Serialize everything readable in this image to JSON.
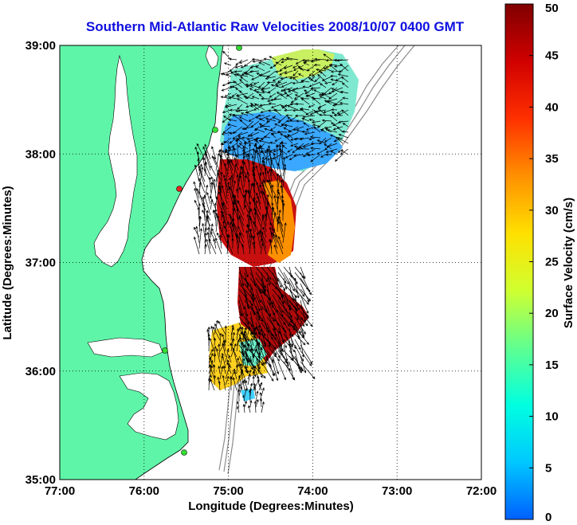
{
  "title": "Southern Mid-Atlantic Raw Velocities 2008/10/07 0400 GMT",
  "x_axis": {
    "label": "Longitude (Degrees:Minutes)",
    "ticks": [
      "77:00",
      "76:00",
      "75:00",
      "74:00",
      "73:00",
      "72:00"
    ],
    "range": [
      -77,
      -72
    ]
  },
  "y_axis": {
    "label": "Latitude (Degrees:Minutes)",
    "ticks": [
      "35:00",
      "36:00",
      "37:00",
      "38:00",
      "39:00"
    ],
    "range": [
      35,
      39
    ]
  },
  "colorbar": {
    "label": "Surface Velocity (cm/s)",
    "ticks": [
      "0",
      "5",
      "10",
      "15",
      "20",
      "25",
      "30",
      "35",
      "40",
      "45",
      "50"
    ],
    "range": [
      0,
      50
    ],
    "colors": [
      "#0060ff",
      "#00c8ff",
      "#00ffe0",
      "#60ff90",
      "#d0ff30",
      "#ffe000",
      "#ff9000",
      "#ff3000",
      "#d00000",
      "#800000"
    ]
  },
  "colors": {
    "land": "#5ff5a8",
    "ocean": "#ffffff",
    "coastline": "#000000",
    "bathymetry": "#8c8c8c",
    "grid": "#000000",
    "arrows": "#000000",
    "station_marker": "#33dd33",
    "station_marker_alt": "#ee2222",
    "title": "#1010e0"
  },
  "grid": true,
  "grid_style": "dotted"
}
